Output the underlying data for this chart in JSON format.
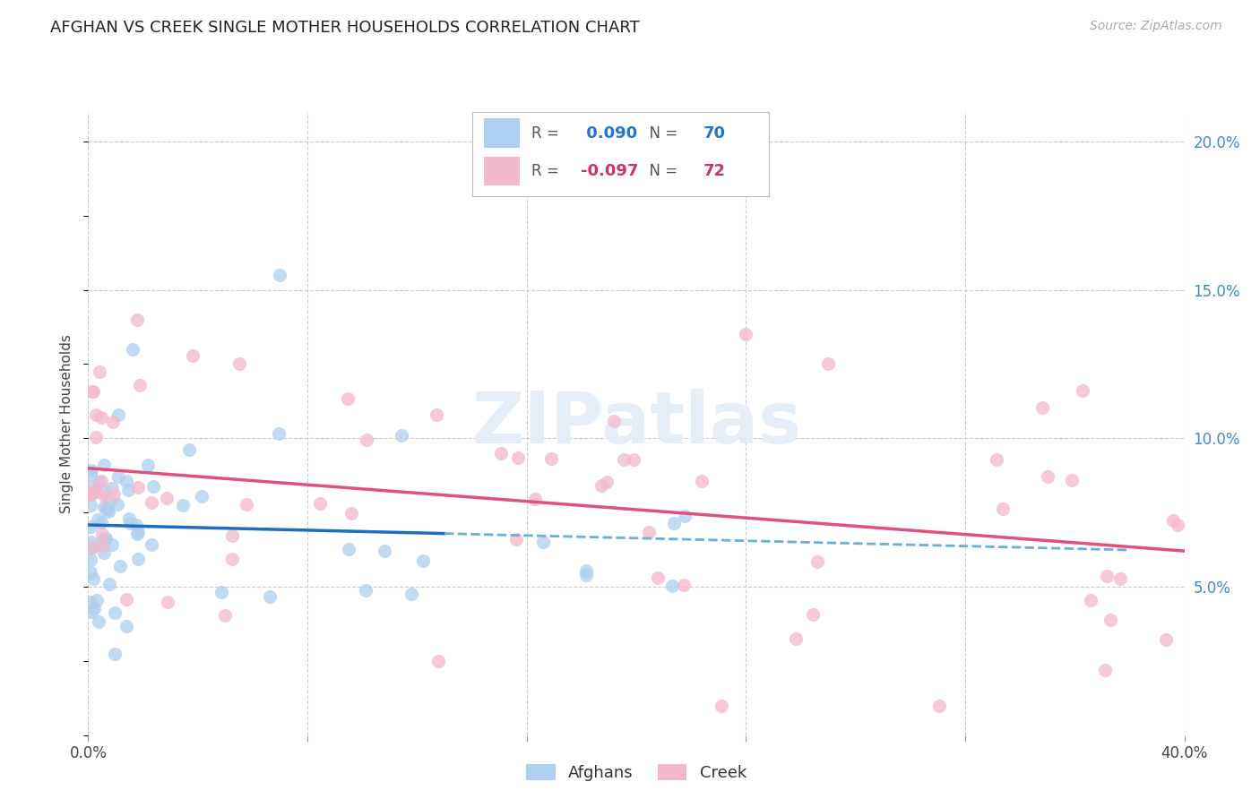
{
  "title": "AFGHAN VS CREEK SINGLE MOTHER HOUSEHOLDS CORRELATION CHART",
  "source": "Source: ZipAtlas.com",
  "ylabel": "Single Mother Households",
  "afghans_color": "#aecff0",
  "creek_color": "#f4b8cb",
  "afghans_line_color": "#1a6fc4",
  "afghans_dash_color": "#6baed6",
  "creek_line_color": "#e05080",
  "background_color": "#ffffff",
  "grid_color": "#cccccc",
  "right_tick_color": "#4488cc",
  "afghans_R": 0.09,
  "afghans_N": 70,
  "creek_R": -0.097,
  "creek_N": 72,
  "xlim": [
    0.0,
    0.4
  ],
  "ylim": [
    0.0,
    0.21
  ],
  "yticks": [
    0.05,
    0.1,
    0.15,
    0.2
  ],
  "ytick_labels": [
    "5.0%",
    "10.0%",
    "15.0%",
    "20.0%"
  ],
  "xticks": [
    0.0,
    0.08,
    0.16,
    0.24,
    0.32,
    0.4
  ],
  "xtick_labels": [
    "0.0%",
    "",
    "",
    "",
    "",
    "40.0%"
  ]
}
